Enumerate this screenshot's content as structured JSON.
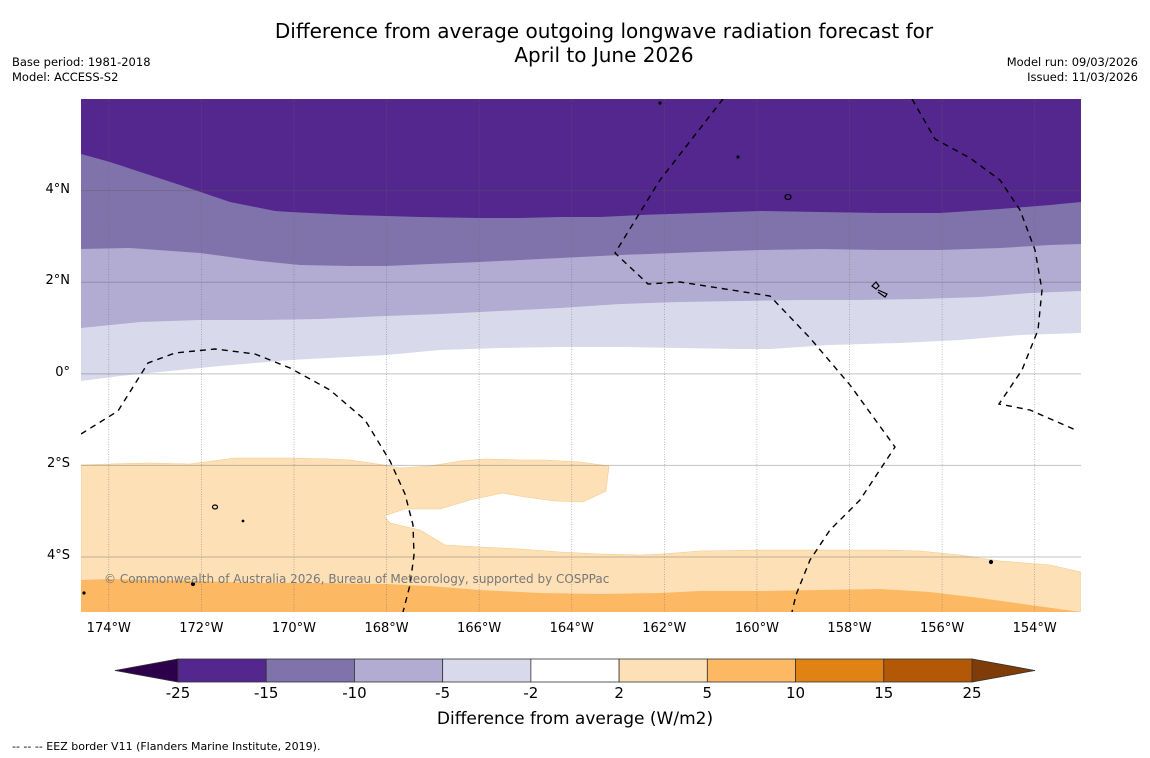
{
  "title_line1": "Difference from average outgoing longwave radiation forecast for",
  "title_line2": "April to June 2026",
  "meta_left": {
    "base_period": "Base period: 1981-2018",
    "model": "Model: ACCESS-S2"
  },
  "meta_right": {
    "model_run": "Model run: 09/03/2026",
    "issued": "Issued: 11/03/2026"
  },
  "map": {
    "lat_labels": [
      "4°N",
      "2°N",
      "0°",
      "2°S",
      "4°S"
    ],
    "lat_values": [
      4,
      2,
      0,
      -2,
      -4
    ],
    "lon_labels": [
      "174°W",
      "172°W",
      "170°W",
      "168°W",
      "166°W",
      "164°W",
      "162°W",
      "160°W",
      "158°W",
      "156°W",
      "154°W"
    ],
    "lon_values": [
      -174,
      -172,
      -170,
      -168,
      -166,
      -164,
      -162,
      -160,
      -158,
      -156,
      -154
    ],
    "extent": {
      "lon_min": -174.6,
      "lon_max": -153.0,
      "lat_min": -5.2,
      "lat_max": 6.0
    },
    "copyright": "© Commonwealth of Australia 2026, Bureau of Meteorology, supported by COSPPac",
    "anomaly_bands_description": [
      {
        "range": "-25 to -15",
        "region": "north of ~3.5°N"
      },
      {
        "range": "-15 to -10",
        "region": "~2.7°N to ~3.5°N"
      },
      {
        "range": "-10 to -5",
        "region": "~1°N to ~2.7°N"
      },
      {
        "range": "-5 to -2",
        "region": "~0° to ~1.5°N"
      },
      {
        "range": "-2 to 2",
        "region": "~2°S to ~0.5°N"
      },
      {
        "range": "2 to 5",
        "region": "~4.5°S to ~2°S (west), ~4°S to ~4.7°S (east)"
      },
      {
        "range": "5 to 10",
        "region": "south of ~4.3°S"
      }
    ]
  },
  "colorbar": {
    "title": "Difference from average (W/m2)",
    "ticks": [
      "-25",
      "-15",
      "-10",
      "-5",
      "-2",
      "2",
      "5",
      "10",
      "15",
      "25"
    ],
    "colors": [
      "#54278f",
      "#8073ac",
      "#b2abd2",
      "#d8daeb",
      "#ffffff",
      "#fee0b6",
      "#fdb863",
      "#e08214",
      "#b35806"
    ],
    "extend_low_color": "#2d004b",
    "extend_high_color": "#7f3b08"
  },
  "footnote": "-- -- -- EEZ border V11 (Flanders Marine Institute, 2019)."
}
